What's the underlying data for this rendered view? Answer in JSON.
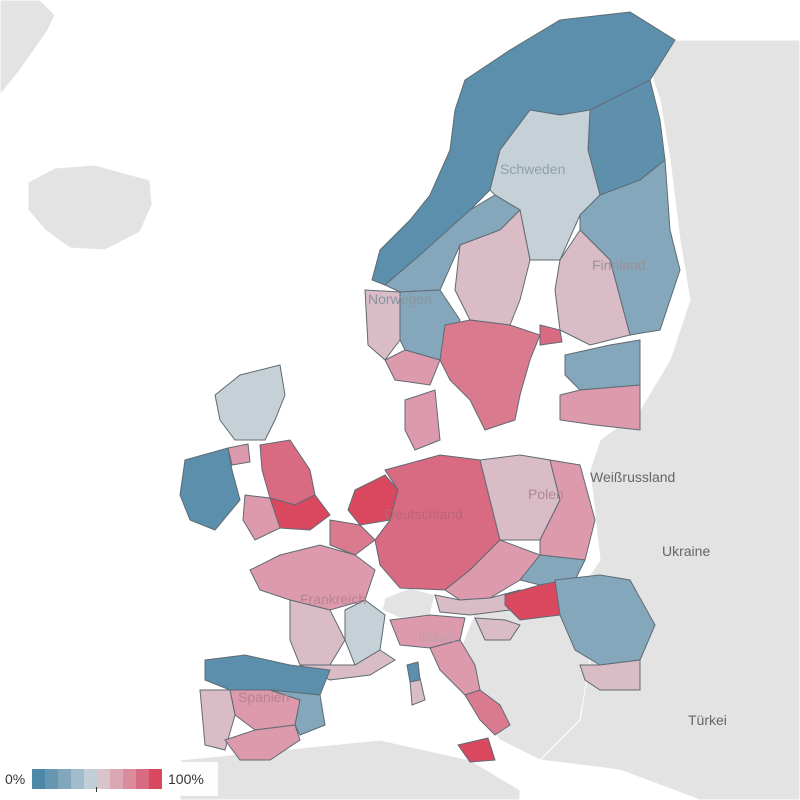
{
  "legend": {
    "min_label": "0%",
    "max_label": "100%",
    "ramp_colors": [
      "#4e88a8",
      "#6796b0",
      "#82a7bd",
      "#a3bccb",
      "#c3cfd6",
      "#d9c4cc",
      "#dca7b5",
      "#da8b9c",
      "#d86a82",
      "#d9485f"
    ]
  },
  "labels": {
    "schweden": "Schweden",
    "finnland": "Finnland",
    "norwegen": "Norwegen",
    "weissrussland": "Weißrussland",
    "polen": "Polen",
    "ukraine": "Ukraine",
    "deutschland": "Deutschland",
    "frankreich": "Frankreich",
    "italien": "Italien",
    "spanien": "Spanien",
    "tuerkei": "Türkei"
  },
  "colors": {
    "sea": "#ffffff",
    "land_no_data": "#e3e3e3",
    "region_border": "#5f6b73",
    "blue_dark": "#5b8fab",
    "blue_mid": "#84a7bc",
    "blue_light": "#c5d0d7",
    "pink_light": "#d9bcc6",
    "pink_mid": "#dc9aac",
    "red_mid": "#da7a8e",
    "red_dark": "#d9485f"
  }
}
